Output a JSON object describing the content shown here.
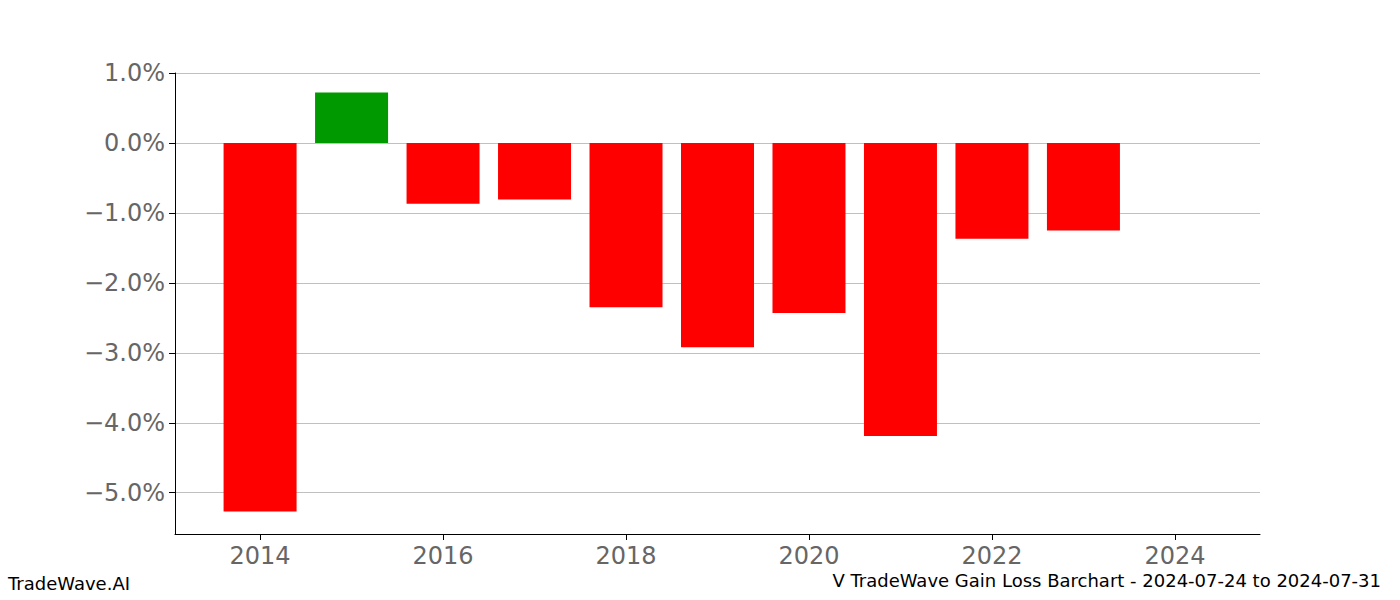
{
  "chart_data": {
    "type": "bar",
    "title": "V TradeWave Gain Loss Barchart - 2024-07-24 to 2024-07-31",
    "annotations": [
      "TradeWave.AI"
    ],
    "x": [
      2014,
      2015,
      2016,
      2017,
      2018,
      2019,
      2020,
      2021,
      2022,
      2023
    ],
    "values": [
      -5.27,
      0.72,
      -0.87,
      -0.81,
      -2.35,
      -2.92,
      -2.43,
      -4.19,
      -1.37,
      -1.25
    ],
    "colors": [
      "#ff0000",
      "#009900",
      "#ff0000",
      "#ff0000",
      "#ff0000",
      "#ff0000",
      "#ff0000",
      "#ff0000",
      "#ff0000",
      "#ff0000"
    ],
    "xlim": [
      2013.07,
      2024.93
    ],
    "xticks": [
      2014,
      2016,
      2018,
      2020,
      2022,
      2024
    ],
    "ylim": [
      -5.59,
      1.0
    ],
    "yticks": [
      {
        "value": -5,
        "label": "−5.0%"
      },
      {
        "value": -4,
        "label": "−4.0%"
      },
      {
        "value": -3,
        "label": "−3.0%"
      },
      {
        "value": -2,
        "label": "−2.0%"
      },
      {
        "value": -1,
        "label": "−1.0%"
      },
      {
        "value": 0,
        "label": "0.0%"
      },
      {
        "value": 1,
        "label": "1.0%"
      }
    ],
    "grid": true
  }
}
